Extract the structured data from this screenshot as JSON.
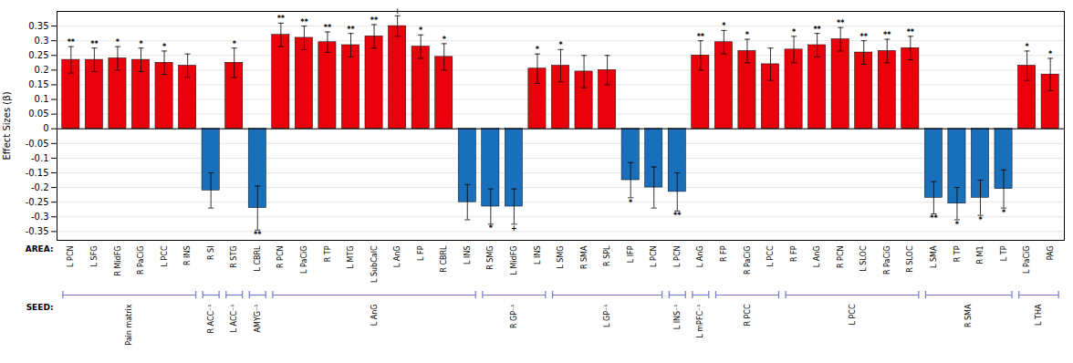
{
  "chart_data": {
    "type": "bar",
    "ylabel": "Effect Sizes (β)",
    "area_label": "AREA:",
    "seed_label": "SEED:",
    "categories": [
      "L PCN",
      "L SFG",
      "R MidFG",
      "R PaCiG",
      "L PCC",
      "R INS",
      "R SI",
      "R STG",
      "L CBRL",
      "R PCN",
      "L PaCiG",
      "R TP",
      "L MTG",
      "L SubCalC",
      "L AnG",
      "L FP",
      "R CBRL",
      "L INS",
      "R SMG",
      "L MidFG",
      "L INS",
      "L SMG",
      "R SMA",
      "R SPL",
      "L IFP",
      "L PCN",
      "L PCN",
      "L AnG",
      "R FP",
      "R PaCiG",
      "L PCC",
      "R FP",
      "L AnG",
      "R PCN",
      "L SLOC",
      "R PaCiG",
      "R SLOC",
      "L SMA",
      "R TP",
      "R M1",
      "L TP",
      "L PaCiG",
      "PAG"
    ],
    "values": [
      0.235,
      0.235,
      0.24,
      0.235,
      0.225,
      0.215,
      -0.21,
      0.225,
      -0.27,
      0.32,
      0.31,
      0.295,
      0.285,
      0.315,
      0.35,
      0.28,
      0.245,
      -0.25,
      -0.265,
      -0.265,
      0.205,
      0.215,
      0.195,
      0.2,
      -0.175,
      -0.2,
      -0.215,
      0.25,
      0.295,
      0.265,
      0.22,
      0.27,
      0.285,
      0.305,
      0.26,
      0.265,
      0.275,
      -0.235,
      -0.255,
      -0.235,
      -0.205,
      0.215,
      0.185
    ],
    "errors": [
      0.045,
      0.04,
      0.04,
      0.04,
      0.04,
      0.04,
      0.06,
      0.05,
      0.075,
      0.04,
      0.04,
      0.035,
      0.04,
      0.04,
      0.035,
      0.04,
      0.045,
      0.06,
      0.06,
      0.06,
      0.05,
      0.055,
      0.055,
      0.05,
      0.06,
      0.07,
      0.065,
      0.05,
      0.04,
      0.04,
      0.055,
      0.045,
      0.04,
      0.04,
      0.04,
      0.04,
      0.04,
      0.055,
      0.055,
      0.06,
      0.065,
      0.05,
      0.055
    ],
    "colors": [
      "#e8000b",
      "#e8000b",
      "#e8000b",
      "#e8000b",
      "#e8000b",
      "#e8000b",
      "#1a6fba",
      "#e8000b",
      "#1a6fba",
      "#e8000b",
      "#e8000b",
      "#e8000b",
      "#e8000b",
      "#e8000b",
      "#e8000b",
      "#e8000b",
      "#e8000b",
      "#1a6fba",
      "#1a6fba",
      "#1a6fba",
      "#e8000b",
      "#e8000b",
      "#e8000b",
      "#e8000b",
      "#1a6fba",
      "#1a6fba",
      "#1a6fba",
      "#e8000b",
      "#e8000b",
      "#e8000b",
      "#e8000b",
      "#e8000b",
      "#e8000b",
      "#e8000b",
      "#e8000b",
      "#e8000b",
      "#e8000b",
      "#1a6fba",
      "#1a6fba",
      "#1a6fba",
      "#1a6fba",
      "#e8000b",
      "#e8000b"
    ],
    "annotations": [
      "**",
      "**",
      "*",
      "*",
      "*",
      null,
      null,
      "*",
      "**",
      "**",
      "**",
      "**",
      "**",
      "**",
      "+",
      "*",
      "*",
      null,
      "*",
      "+",
      "*",
      "*",
      null,
      null,
      "*",
      null,
      "**",
      "**",
      "*",
      "*",
      null,
      "*",
      "**",
      "**",
      "**",
      "**",
      "**",
      "**",
      "*",
      "*",
      "*",
      "*",
      "*"
    ],
    "seeds": [
      "Pain matrix",
      "Pain matrix",
      "Pain matrix",
      "Pain matrix",
      "Pain matrix",
      "Pain matrix",
      "R ACC⁻¹",
      "L ACC⁻¹",
      "AMYG⁻¹",
      "L AnG",
      "L AnG",
      "L AnG",
      "L AnG",
      "L AnG",
      "L AnG",
      "L AnG",
      "L AnG",
      "L AnG",
      "R GP⁻¹",
      "R GP⁻¹",
      "R GP⁻¹",
      "L GP⁻¹",
      "L GP⁻¹",
      "L GP⁻¹",
      "L GP⁻¹",
      "L GP⁻¹",
      "L INS⁻¹",
      "L mPFC⁻¹",
      "R PCC",
      "R PCC",
      "R PCC",
      "L PCC",
      "L PCC",
      "L PCC",
      "L PCC",
      "L PCC",
      "L PCC",
      "R SMA",
      "R SMA",
      "R SMA",
      "R SMA",
      "L THA",
      "L THA"
    ],
    "ylim": [
      -0.38,
      0.4
    ],
    "yticks": [
      -0.35,
      -0.3,
      -0.25,
      -0.2,
      -0.15,
      -0.1,
      -0.05,
      0,
      0.05,
      0.1,
      0.15,
      0.2,
      0.25,
      0.3,
      0.35
    ],
    "grid": true
  }
}
